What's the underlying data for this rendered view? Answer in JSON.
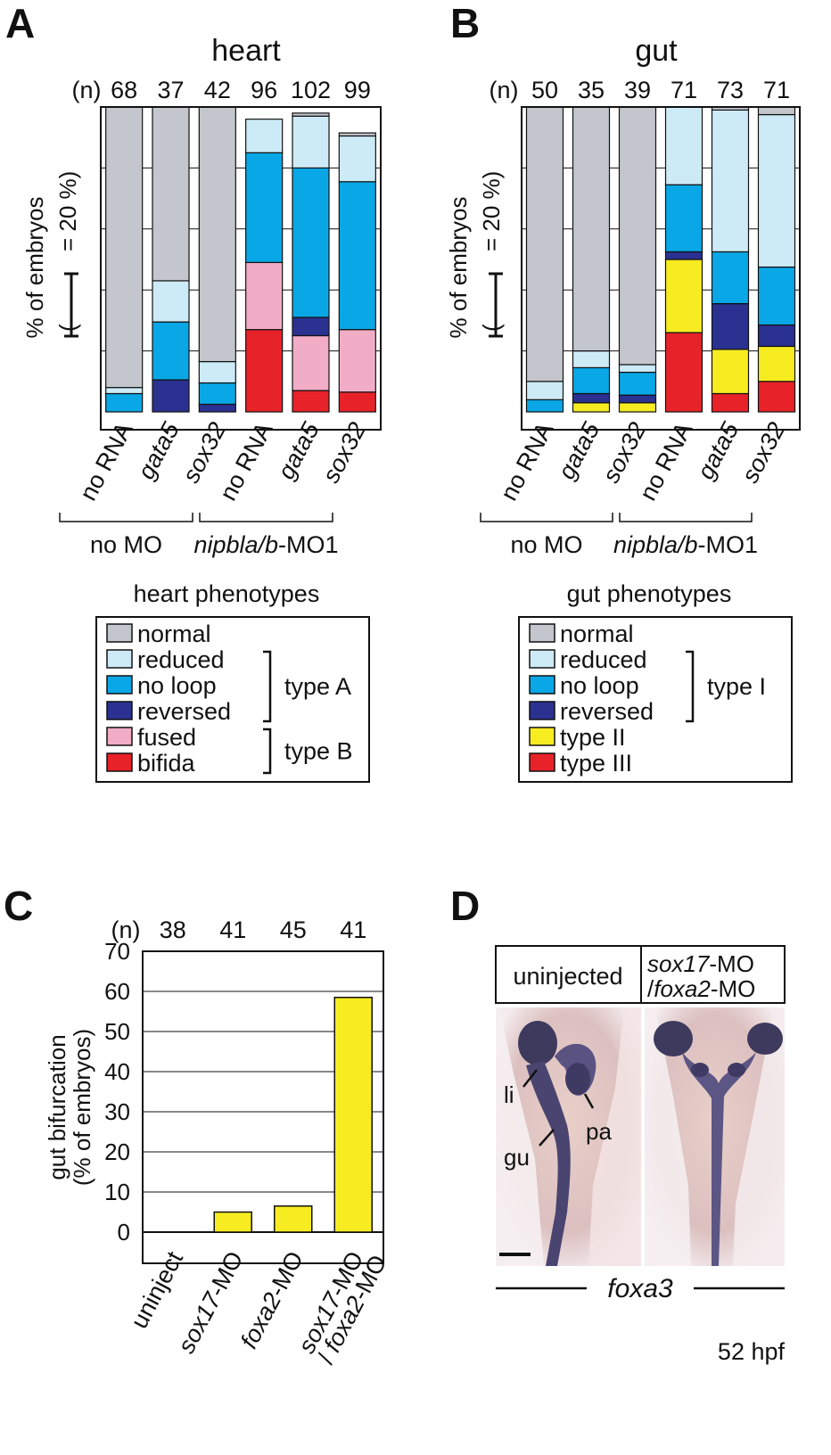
{
  "panels": {
    "A": "A",
    "B": "B",
    "C": "C",
    "D": "D"
  },
  "colors": {
    "normal": "#c3c6cc",
    "reduced": "#cdebf7",
    "no_loop": "#0aa7e6",
    "reversed": "#2b3191",
    "fused": "#f2adc6",
    "bifida": "#e82229",
    "type_II": "#f7ec21",
    "type_III": "#e82229",
    "bar_c": "#f7ec21"
  },
  "chart_data": [
    {
      "id": "A",
      "type": "bar",
      "stacked": true,
      "title": "heart",
      "n_label": "(n)",
      "n": [
        "68",
        "37",
        "42",
        "96",
        "102",
        "99"
      ],
      "categories": [
        "no RNA",
        "gata5",
        "sox32",
        "no RNA",
        "gata5",
        "sox32"
      ],
      "category_italic": [
        false,
        true,
        true,
        false,
        true,
        true
      ],
      "groups": [
        {
          "label": "no MO",
          "italic_part": "",
          "rest": "no MO",
          "from": 0,
          "to": 2
        },
        {
          "label": "nipbla/b-MO1",
          "italic_part": "nipbla/b",
          "rest": "-MO1",
          "from": 3,
          "to": 5
        }
      ],
      "ylabel": "% of embryos",
      "ylabel2": "(",
      "ylabel3": "= 20 %)",
      "ylim": [
        0,
        100
      ],
      "series": [
        {
          "key": "bifida",
          "name": "bifida",
          "values": [
            0,
            0,
            0,
            27,
            7,
            6.5
          ]
        },
        {
          "key": "fused",
          "name": "fused",
          "values": [
            0,
            0,
            0,
            22,
            18,
            20.5
          ]
        },
        {
          "key": "reversed",
          "name": "reversed",
          "values": [
            0,
            10.5,
            2.5,
            0,
            6,
            0
          ]
        },
        {
          "key": "no_loop",
          "name": "no loop",
          "values": [
            6,
            19,
            7,
            36,
            49,
            48.5
          ]
        },
        {
          "key": "reduced",
          "name": "reduced",
          "values": [
            2,
            13.5,
            7,
            11,
            17,
            15
          ]
        },
        {
          "key": "normal",
          "name": "normal",
          "values": [
            92,
            57,
            83.5,
            0,
            1,
            1
          ]
        }
      ],
      "legend": {
        "title": "heart phenotypes",
        "items": [
          {
            "key": "normal",
            "label": "normal"
          },
          {
            "key": "reduced",
            "label": "reduced"
          },
          {
            "key": "no_loop",
            "label": "no loop"
          },
          {
            "key": "reversed",
            "label": "reversed"
          },
          {
            "key": "fused",
            "label": "fused"
          },
          {
            "key": "bifida",
            "label": "bifida"
          }
        ],
        "brackets": [
          {
            "label": "type A",
            "from": 1,
            "to": 3
          },
          {
            "label": "type B",
            "from": 4,
            "to": 5
          }
        ]
      }
    },
    {
      "id": "B",
      "type": "bar",
      "stacked": true,
      "title": "gut",
      "n_label": "(n)",
      "n": [
        "50",
        "35",
        "39",
        "71",
        "73",
        "71"
      ],
      "categories": [
        "no RNA",
        "gata5",
        "sox32",
        "no RNA",
        "gata5",
        "sox32"
      ],
      "category_italic": [
        false,
        true,
        true,
        false,
        true,
        true
      ],
      "groups": [
        {
          "label": "no MO",
          "italic_part": "",
          "rest": "no MO",
          "from": 0,
          "to": 2
        },
        {
          "label": "nipbla/b-MO1",
          "italic_part": "nipbla/b",
          "rest": "-MO1",
          "from": 3,
          "to": 5
        }
      ],
      "ylabel": "% of embryos",
      "ylabel2": "(",
      "ylabel3": "= 20 %)",
      "ylim": [
        0,
        100
      ],
      "series": [
        {
          "key": "type_III",
          "name": "type III",
          "values": [
            0,
            0,
            0,
            26,
            6,
            10
          ]
        },
        {
          "key": "type_II",
          "name": "type II",
          "values": [
            0,
            3,
            3,
            24,
            14.5,
            11.5
          ]
        },
        {
          "key": "reversed",
          "name": "reversed",
          "values": [
            0,
            3,
            2.5,
            2.5,
            15,
            7
          ]
        },
        {
          "key": "no_loop",
          "name": "no loop",
          "values": [
            4,
            8.5,
            7.5,
            22,
            17,
            19
          ]
        },
        {
          "key": "reduced",
          "name": "reduced",
          "values": [
            6,
            5.5,
            2.5,
            25.5,
            46.5,
            50
          ]
        },
        {
          "key": "normal",
          "name": "normal",
          "values": [
            90,
            80,
            84.5,
            0,
            1,
            2.5
          ]
        }
      ],
      "legend": {
        "title": "gut phenotypes",
        "items": [
          {
            "key": "normal",
            "label": "normal"
          },
          {
            "key": "reduced",
            "label": "reduced"
          },
          {
            "key": "no_loop",
            "label": "no loop"
          },
          {
            "key": "reversed",
            "label": "reversed"
          },
          {
            "key": "type_II",
            "label": "type II"
          },
          {
            "key": "type_III",
            "label": "type III"
          }
        ],
        "brackets": [
          {
            "label": "type I",
            "from": 1,
            "to": 3
          }
        ]
      }
    },
    {
      "id": "C",
      "type": "bar",
      "stacked": false,
      "n_label": "(n)",
      "n": [
        "38",
        "41",
        "45",
        "41"
      ],
      "categories": [
        {
          "parts": [
            {
              "t": "uninject",
              "i": false
            }
          ]
        },
        {
          "parts": [
            {
              "t": "sox17",
              "i": true
            },
            {
              "t": "-MO",
              "i": false
            }
          ]
        },
        {
          "parts": [
            {
              "t": "foxa2",
              "i": true
            },
            {
              "t": "-MO",
              "i": false
            }
          ]
        },
        {
          "parts": [
            {
              "t": "sox17",
              "i": true
            },
            {
              "t": "-MO",
              "i": false
            }
          ],
          "line2": [
            {
              "t": "/ ",
              "i": false
            },
            {
              "t": "foxa2",
              "i": true
            },
            {
              "t": "-MO",
              "i": false
            }
          ]
        }
      ],
      "values": [
        0,
        5,
        6.5,
        58.5
      ],
      "ylabel": "gut bifurcation",
      "ylabel2": "(% of embryos)",
      "ylim": [
        0,
        70
      ],
      "yticks": [
        "0",
        "10",
        "20",
        "30",
        "40",
        "50",
        "60",
        "70"
      ]
    }
  ],
  "panel_d": {
    "header_left": "uninjected",
    "header_right_line1_italic": "sox17",
    "header_right_line1_rest": "-MO",
    "header_right_line2_pre": "/",
    "header_right_line2_italic": "foxa2",
    "header_right_line2_rest": "-MO",
    "labels": {
      "li": "li",
      "pa": "pa",
      "gu": "gu"
    },
    "gene": "foxa3",
    "stage": "52 hpf"
  }
}
